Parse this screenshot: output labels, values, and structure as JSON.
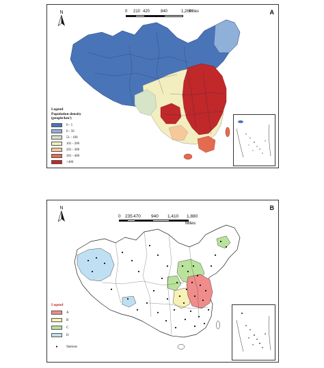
{
  "panel_a": {
    "letter": "A",
    "north_label": "N",
    "scale": {
      "ticks": [
        "0",
        "210",
        "420",
        "840",
        "1,260"
      ],
      "unit": "Miles"
    },
    "legend": {
      "title": "Legend",
      "subtitle": "Population density",
      "units": "(people/km²)",
      "classes": [
        {
          "label": "0 - 5",
          "color": "#4a74b8"
        },
        {
          "label": "6 - 50",
          "color": "#8fb0d8"
        },
        {
          "label": "51 - 100",
          "color": "#d6e4c8"
        },
        {
          "label": "101 - 200",
          "color": "#f3eec0"
        },
        {
          "label": "201 - 300",
          "color": "#f6c99a"
        },
        {
          "label": "301 - 400",
          "color": "#e56b50"
        },
        {
          "label": ">400",
          "color": "#c0282a"
        }
      ]
    }
  },
  "panel_b": {
    "letter": "B",
    "north_label": "N",
    "scale": {
      "ticks": [
        "0",
        "235",
        "470",
        "940",
        "1,410",
        "1,880"
      ],
      "unit": "Miles"
    },
    "legend": {
      "title": "Legend",
      "classes": [
        {
          "label": "A",
          "color": "#f08c8a"
        },
        {
          "label": "B",
          "color": "#f7f1b6"
        },
        {
          "label": "C",
          "color": "#b9e39c"
        },
        {
          "label": "D",
          "color": "#bfe0f2"
        }
      ],
      "stations_label": "Stations"
    }
  }
}
